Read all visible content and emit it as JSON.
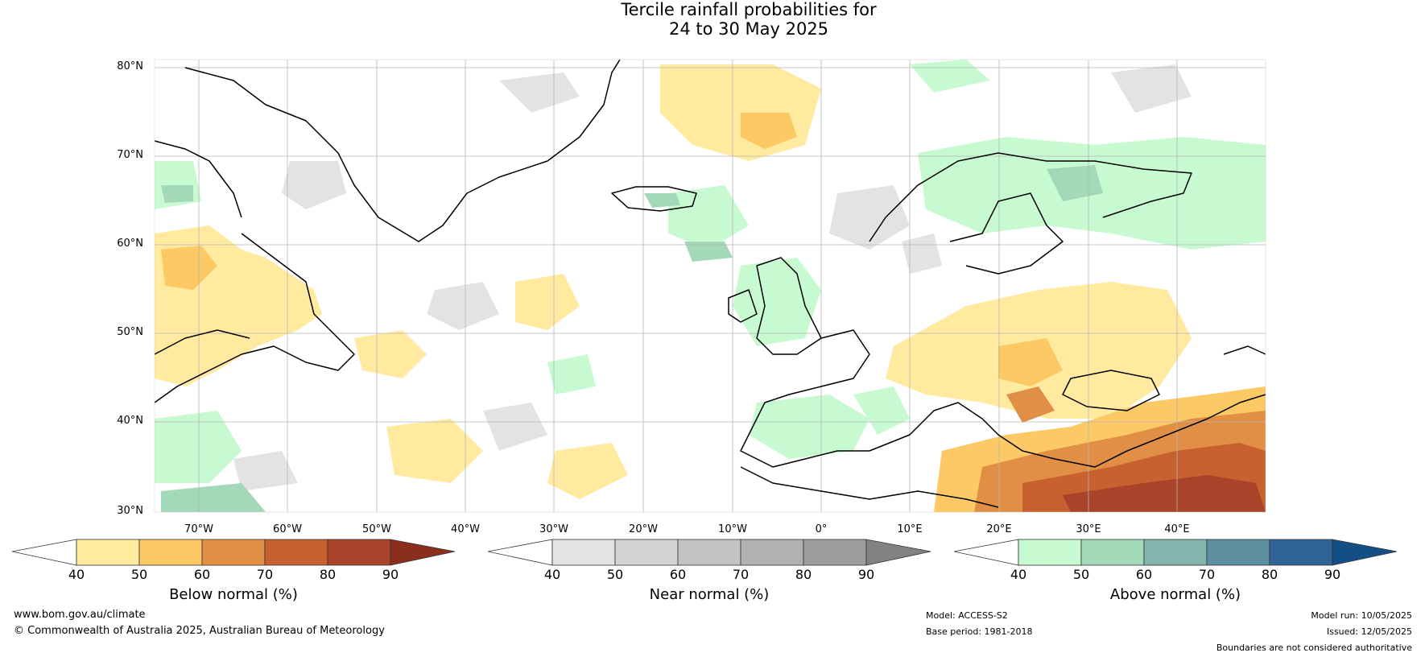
{
  "title": {
    "line1": "Tercile rainfall probabilities for",
    "line2": "24 to 30 May 2025"
  },
  "map": {
    "lat_labels": [
      "80°N",
      "70°N",
      "60°N",
      "50°N",
      "40°N",
      "30°N"
    ],
    "lon_labels": [
      "70°W",
      "60°W",
      "50°W",
      "40°W",
      "30°W",
      "20°W",
      "10°W",
      "0°",
      "10°E",
      "20°E",
      "30°E",
      "40°E"
    ],
    "colors": {
      "below": [
        "#ffeaa0",
        "#fdc965",
        "#e08f44",
        "#c8602f",
        "#a9442a",
        "#8c2e1e"
      ],
      "near": [
        "#e3e3e3",
        "#d2d2d2",
        "#c3c3c3",
        "#b1b1b1",
        "#9d9d9d",
        "#828282"
      ],
      "above": [
        "#c8fad2",
        "#a3d8b8",
        "#83b5ac",
        "#5c8fa0",
        "#2f6496",
        "#134f85"
      ]
    }
  },
  "colorbars": [
    {
      "id": "below",
      "label": "Below normal (%)",
      "ticks": [
        "40",
        "50",
        "60",
        "70",
        "80",
        "90"
      ]
    },
    {
      "id": "near",
      "label": "Near normal (%)",
      "ticks": [
        "40",
        "50",
        "60",
        "70",
        "80",
        "90"
      ]
    },
    {
      "id": "above",
      "label": "Above normal (%)",
      "ticks": [
        "40",
        "50",
        "60",
        "70",
        "80",
        "90"
      ]
    }
  ],
  "footer": {
    "website": "www.bom.gov.au/climate",
    "copyright": "© Commonwealth of Australia 2025, Australian Bureau of Meteorology",
    "model": "Model: ACCESS-S2",
    "base_period": "Base period: 1981-2018",
    "model_run": "Model run: 10/05/2025",
    "issued": "Issued: 12/05/2025",
    "disclaimer": "Boundaries are not considered authoritative"
  }
}
